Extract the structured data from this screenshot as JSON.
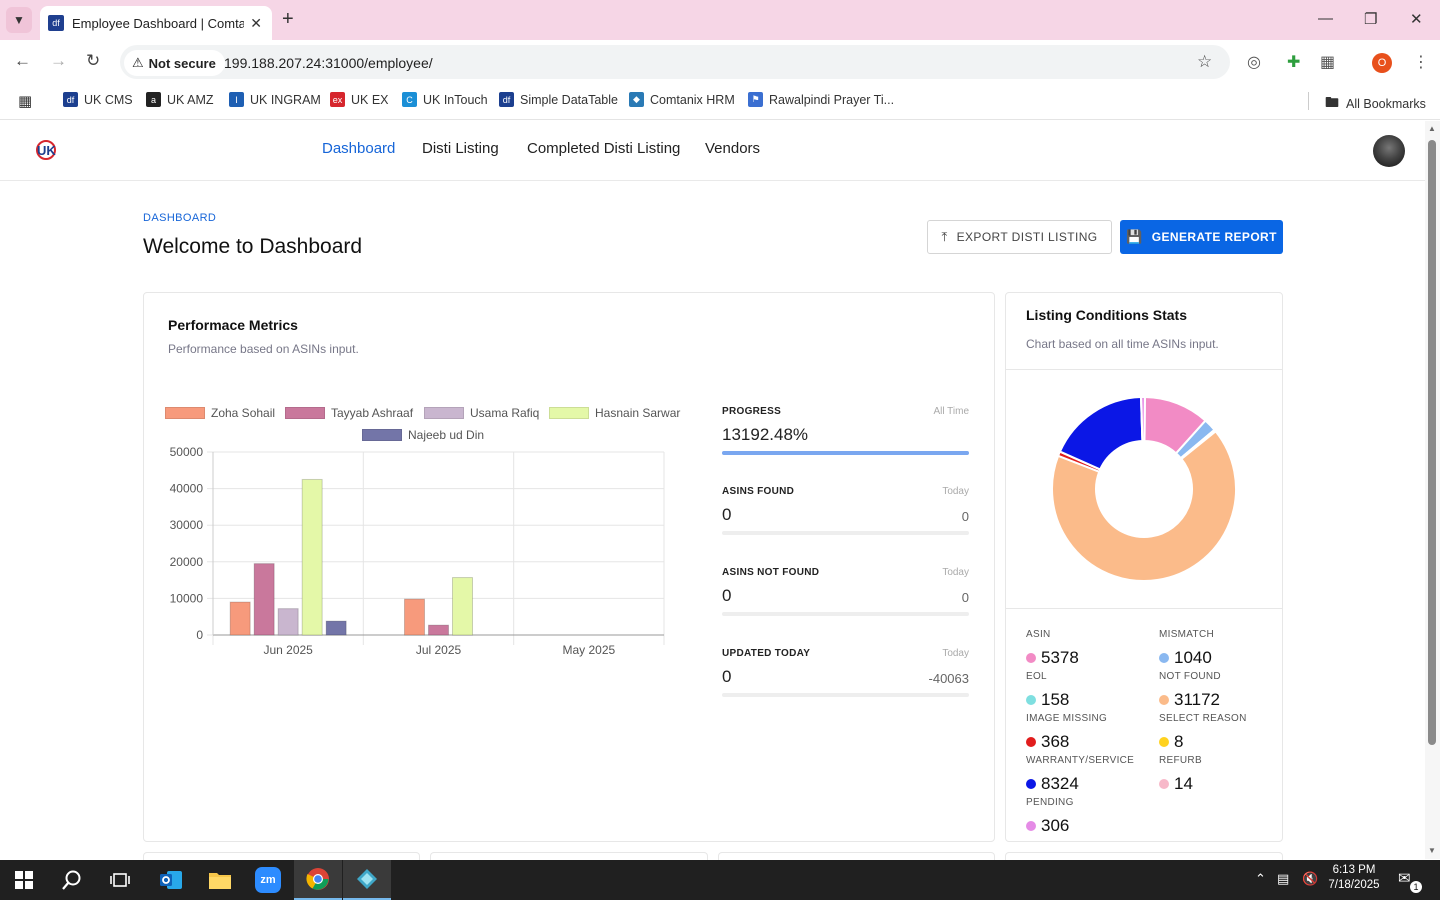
{
  "browser": {
    "tab_title": "Employee Dashboard | Comtanix",
    "security_label": "Not secure",
    "url": "199.188.207.24:31000/employee/",
    "profile_letter": "O",
    "bookmarks": [
      {
        "label": "UK CMS",
        "color": "#1c3f8f",
        "glyph": "df"
      },
      {
        "label": "UK AMZ",
        "color": "#222222",
        "glyph": "a"
      },
      {
        "label": "UK INGRAM",
        "color": "#1e5fb3",
        "glyph": "I"
      },
      {
        "label": "UK EX",
        "color": "#d6262d",
        "glyph": "ex"
      },
      {
        "label": "UK InTouch",
        "color": "#1b8fd6",
        "glyph": "C"
      },
      {
        "label": "Simple DataTable",
        "color": "#1c3f8f",
        "glyph": "df"
      },
      {
        "label": "Comtanix HRM",
        "color": "#2a7ab5",
        "glyph": "◆"
      },
      {
        "label": "Rawalpindi Prayer Ti...",
        "color": "#3b6fd1",
        "glyph": "⚑"
      }
    ],
    "all_bookmarks": "All Bookmarks"
  },
  "app": {
    "logo": "UK",
    "nav": [
      "Dashboard",
      "Disti Listing",
      "Completed Disti Listing",
      "Vendors"
    ],
    "breadcrumb": "DASHBOARD",
    "title": "Welcome to Dashboard",
    "export_label": "EXPORT DISTI LISTING",
    "generate_label": "GENERATE REPORT"
  },
  "performance": {
    "title": "Performace Metrics",
    "subtitle": "Performance based on ASINs input.",
    "metrics": [
      {
        "label": "PROGRESS",
        "tag": "All Time",
        "value": "13192.48%",
        "sub": "",
        "fill": 1.0
      },
      {
        "label": "ASINS FOUND",
        "tag": "Today",
        "value": "0",
        "sub": "0",
        "fill": 0
      },
      {
        "label": "ASINS NOT FOUND",
        "tag": "Today",
        "value": "0",
        "sub": "0",
        "fill": 0
      },
      {
        "label": "UPDATED TODAY",
        "tag": "Today",
        "value": "0",
        "sub": "-40063",
        "fill": 0
      }
    ]
  },
  "chart_data": [
    {
      "type": "bar",
      "categories": [
        "Jun 2025",
        "Jul 2025",
        "May 2025"
      ],
      "series": [
        {
          "name": "Zoha Sohail",
          "color": "#f79a7c",
          "values": [
            9000,
            9800,
            0
          ]
        },
        {
          "name": "Tayyab Ashraaf",
          "color": "#c9789c",
          "values": [
            19500,
            2700,
            0
          ]
        },
        {
          "name": "Usama Rafiq",
          "color": "#c9b6cf",
          "values": [
            7200,
            0,
            0
          ]
        },
        {
          "name": "Hasnain Sarwar",
          "color": "#e4f8a8",
          "values": [
            42500,
            15700,
            0
          ]
        },
        {
          "name": "Najeeb ud Din",
          "color": "#7375a8",
          "values": [
            3800,
            0,
            0
          ]
        }
      ],
      "ylim": [
        0,
        50000
      ],
      "yticks": [
        0,
        10000,
        20000,
        30000,
        40000,
        50000
      ],
      "grid": true,
      "legend": "top"
    },
    {
      "type": "pie",
      "title": "Listing Conditions Stats",
      "labels": [
        "ASIN",
        "MISMATCH",
        "EOL",
        "NOT FOUND",
        "IMAGE MISSING",
        "SELECT REASON",
        "WARRANTY/SERVICE",
        "REFURB",
        "PENDING",
        ""
      ],
      "values": [
        5378,
        1040,
        158,
        31172,
        368,
        8,
        8324,
        14,
        306,
        0
      ],
      "colors": [
        "#f28bc5",
        "#8ab8f0",
        "#7fdfe0",
        "#fbbb8a",
        "#e11d1d",
        "#ffd21f",
        "#0b17e6",
        "#f7b8c9",
        "#e58be6",
        "#ffffff"
      ]
    }
  ],
  "conditions": {
    "title": "Listing Conditions Stats",
    "subtitle": "Chart based on all time ASINs input.",
    "stats": [
      {
        "label": "ASIN",
        "value": "5378",
        "color": "#f28bc5"
      },
      {
        "label": "MISMATCH",
        "value": "1040",
        "color": "#8ab8f0"
      },
      {
        "label": "EOL",
        "value": "158",
        "color": "#7fdfe0"
      },
      {
        "label": "NOT FOUND",
        "value": "31172",
        "color": "#fbbb8a"
      },
      {
        "label": "IMAGE MISSING",
        "value": "368",
        "color": "#e11d1d"
      },
      {
        "label": "SELECT REASON",
        "value": "8",
        "color": "#ffd21f"
      },
      {
        "label": "WARRANTY/SERVICE",
        "value": "8324",
        "color": "#0b17e6"
      },
      {
        "label": "REFURB",
        "value": "14",
        "color": "#f7b8c9"
      },
      {
        "label": "PENDING",
        "value": "306",
        "color": "#e58be6"
      }
    ]
  },
  "taskbar": {
    "time": "6:13 PM",
    "date": "7/18/2025",
    "notifications": "1"
  }
}
